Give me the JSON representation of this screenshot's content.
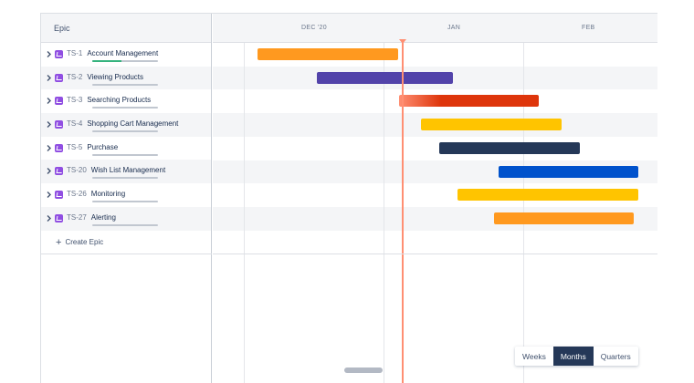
{
  "header": {
    "epic_column_label": "Epic"
  },
  "timeline": {
    "months": [
      "DEC '20",
      "JAN",
      "FEB"
    ]
  },
  "epics": [
    {
      "key": "TS-1",
      "name": "Account Management",
      "progress": 0.45,
      "progress_color": "#36b37e",
      "bar_color": "#ff991f"
    },
    {
      "key": "TS-2",
      "name": "Viewing Products",
      "progress": 0.0,
      "progress_color": "#36b37e",
      "bar_color": "#5243aa"
    },
    {
      "key": "TS-3",
      "name": "Searching Products",
      "progress": 0.0,
      "progress_color": "#36b37e",
      "bar_color": "#de350b"
    },
    {
      "key": "TS-4",
      "name": "Shopping Cart Management",
      "progress": 0.0,
      "progress_color": "#36b37e",
      "bar_color": "#ffc400"
    },
    {
      "key": "TS-5",
      "name": "Purchase",
      "progress": 0.0,
      "progress_color": "#36b37e",
      "bar_color": "#253858"
    },
    {
      "key": "TS-20",
      "name": "Wish List Management",
      "progress": 0.0,
      "progress_color": "#36b37e",
      "bar_color": "#0052cc"
    },
    {
      "key": "TS-26",
      "name": "Monitoring",
      "progress": 0.0,
      "progress_color": "#36b37e",
      "bar_color": "#ffc400"
    },
    {
      "key": "TS-27",
      "name": "Alerting",
      "progress": 0.0,
      "progress_color": "#36b37e",
      "bar_color": "#ff991f"
    }
  ],
  "create_epic_label": "Create Epic",
  "zoom": {
    "options": [
      "Weeks",
      "Months",
      "Quarters"
    ],
    "selected": "Months"
  },
  "colors": {
    "today_line": "#ff8f73",
    "issue_icon": "#904ee2"
  }
}
